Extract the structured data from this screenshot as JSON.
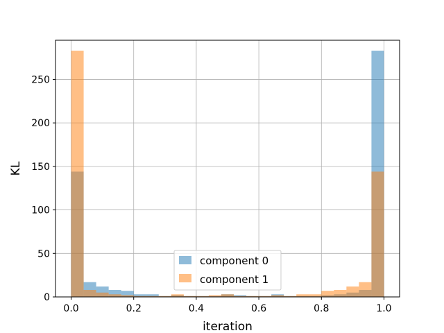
{
  "chart_data": {
    "type": "bar",
    "title": "",
    "xlabel": "iteration",
    "ylabel": "KL",
    "xlim": [
      -0.05,
      1.05
    ],
    "ylim": [
      0,
      295
    ],
    "grid": true,
    "xticks": [
      0.0,
      0.2,
      0.4,
      0.6,
      0.8,
      1.0
    ],
    "xtick_labels": [
      "0.0",
      "0.2",
      "0.4",
      "0.6",
      "0.8",
      "1.0"
    ],
    "yticks": [
      0,
      50,
      100,
      150,
      200,
      250
    ],
    "ytick_labels": [
      "0",
      "50",
      "100",
      "150",
      "200",
      "250"
    ],
    "legend_position": "bottom-center",
    "bin_edges": [
      0.0,
      0.04,
      0.08,
      0.12,
      0.16,
      0.2,
      0.24,
      0.28,
      0.32,
      0.36,
      0.4,
      0.44,
      0.48,
      0.52,
      0.56,
      0.6,
      0.64,
      0.68,
      0.72,
      0.76,
      0.8,
      0.84,
      0.88,
      0.92,
      0.96,
      1.0
    ],
    "series": [
      {
        "name": "component 0",
        "color": "#1f77b4",
        "alpha": 0.5,
        "values": [
          144,
          17,
          12,
          8,
          7,
          3,
          3,
          1,
          2,
          1,
          1,
          1,
          3,
          2,
          1,
          1,
          3,
          1,
          1,
          1,
          2,
          3,
          5,
          8,
          283
        ]
      },
      {
        "name": "component 1",
        "color": "#ff7f0e",
        "alpha": 0.5,
        "values": [
          283,
          8,
          5,
          3,
          2,
          1,
          1,
          1,
          3,
          1,
          1,
          2,
          3,
          1,
          1,
          1,
          2,
          1,
          3,
          3,
          7,
          8,
          12,
          17,
          144
        ]
      }
    ]
  }
}
